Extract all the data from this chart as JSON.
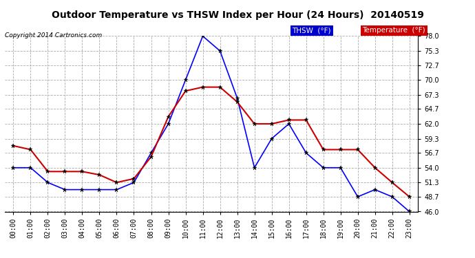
{
  "title": "Outdoor Temperature vs THSW Index per Hour (24 Hours)  20140519",
  "copyright": "Copyright 2014 Cartronics.com",
  "hours": [
    "00:00",
    "01:00",
    "02:00",
    "03:00",
    "04:00",
    "05:00",
    "06:00",
    "07:00",
    "08:00",
    "09:00",
    "10:00",
    "11:00",
    "12:00",
    "13:00",
    "14:00",
    "15:00",
    "16:00",
    "17:00",
    "18:00",
    "19:00",
    "20:00",
    "21:00",
    "22:00",
    "23:00"
  ],
  "thsw": [
    54.0,
    54.0,
    51.3,
    50.0,
    50.0,
    50.0,
    50.0,
    51.3,
    56.7,
    62.0,
    70.0,
    78.0,
    75.3,
    66.7,
    54.0,
    59.3,
    62.0,
    56.7,
    54.0,
    54.0,
    48.7,
    50.0,
    48.7,
    46.0
  ],
  "temperature": [
    58.0,
    57.3,
    53.3,
    53.3,
    53.3,
    52.7,
    51.3,
    52.0,
    56.0,
    63.3,
    68.0,
    68.7,
    68.7,
    66.0,
    62.0,
    62.0,
    62.7,
    62.7,
    57.3,
    57.3,
    57.3,
    54.0,
    51.3,
    48.7
  ],
  "thsw_color": "#0000ff",
  "temp_color": "#cc0000",
  "ylim_min": 46.0,
  "ylim_max": 78.0,
  "yticks": [
    46.0,
    48.7,
    51.3,
    54.0,
    56.7,
    59.3,
    62.0,
    64.7,
    67.3,
    70.0,
    72.7,
    75.3,
    78.0
  ],
  "background_color": "#ffffff",
  "plot_bg_color": "#ffffff",
  "grid_color": "#aaaaaa",
  "legend_thsw_bg": "#0000cc",
  "legend_temp_bg": "#cc0000",
  "legend_thsw_label": "THSW  (°F)",
  "legend_temp_label": "Temperature  (°F)"
}
